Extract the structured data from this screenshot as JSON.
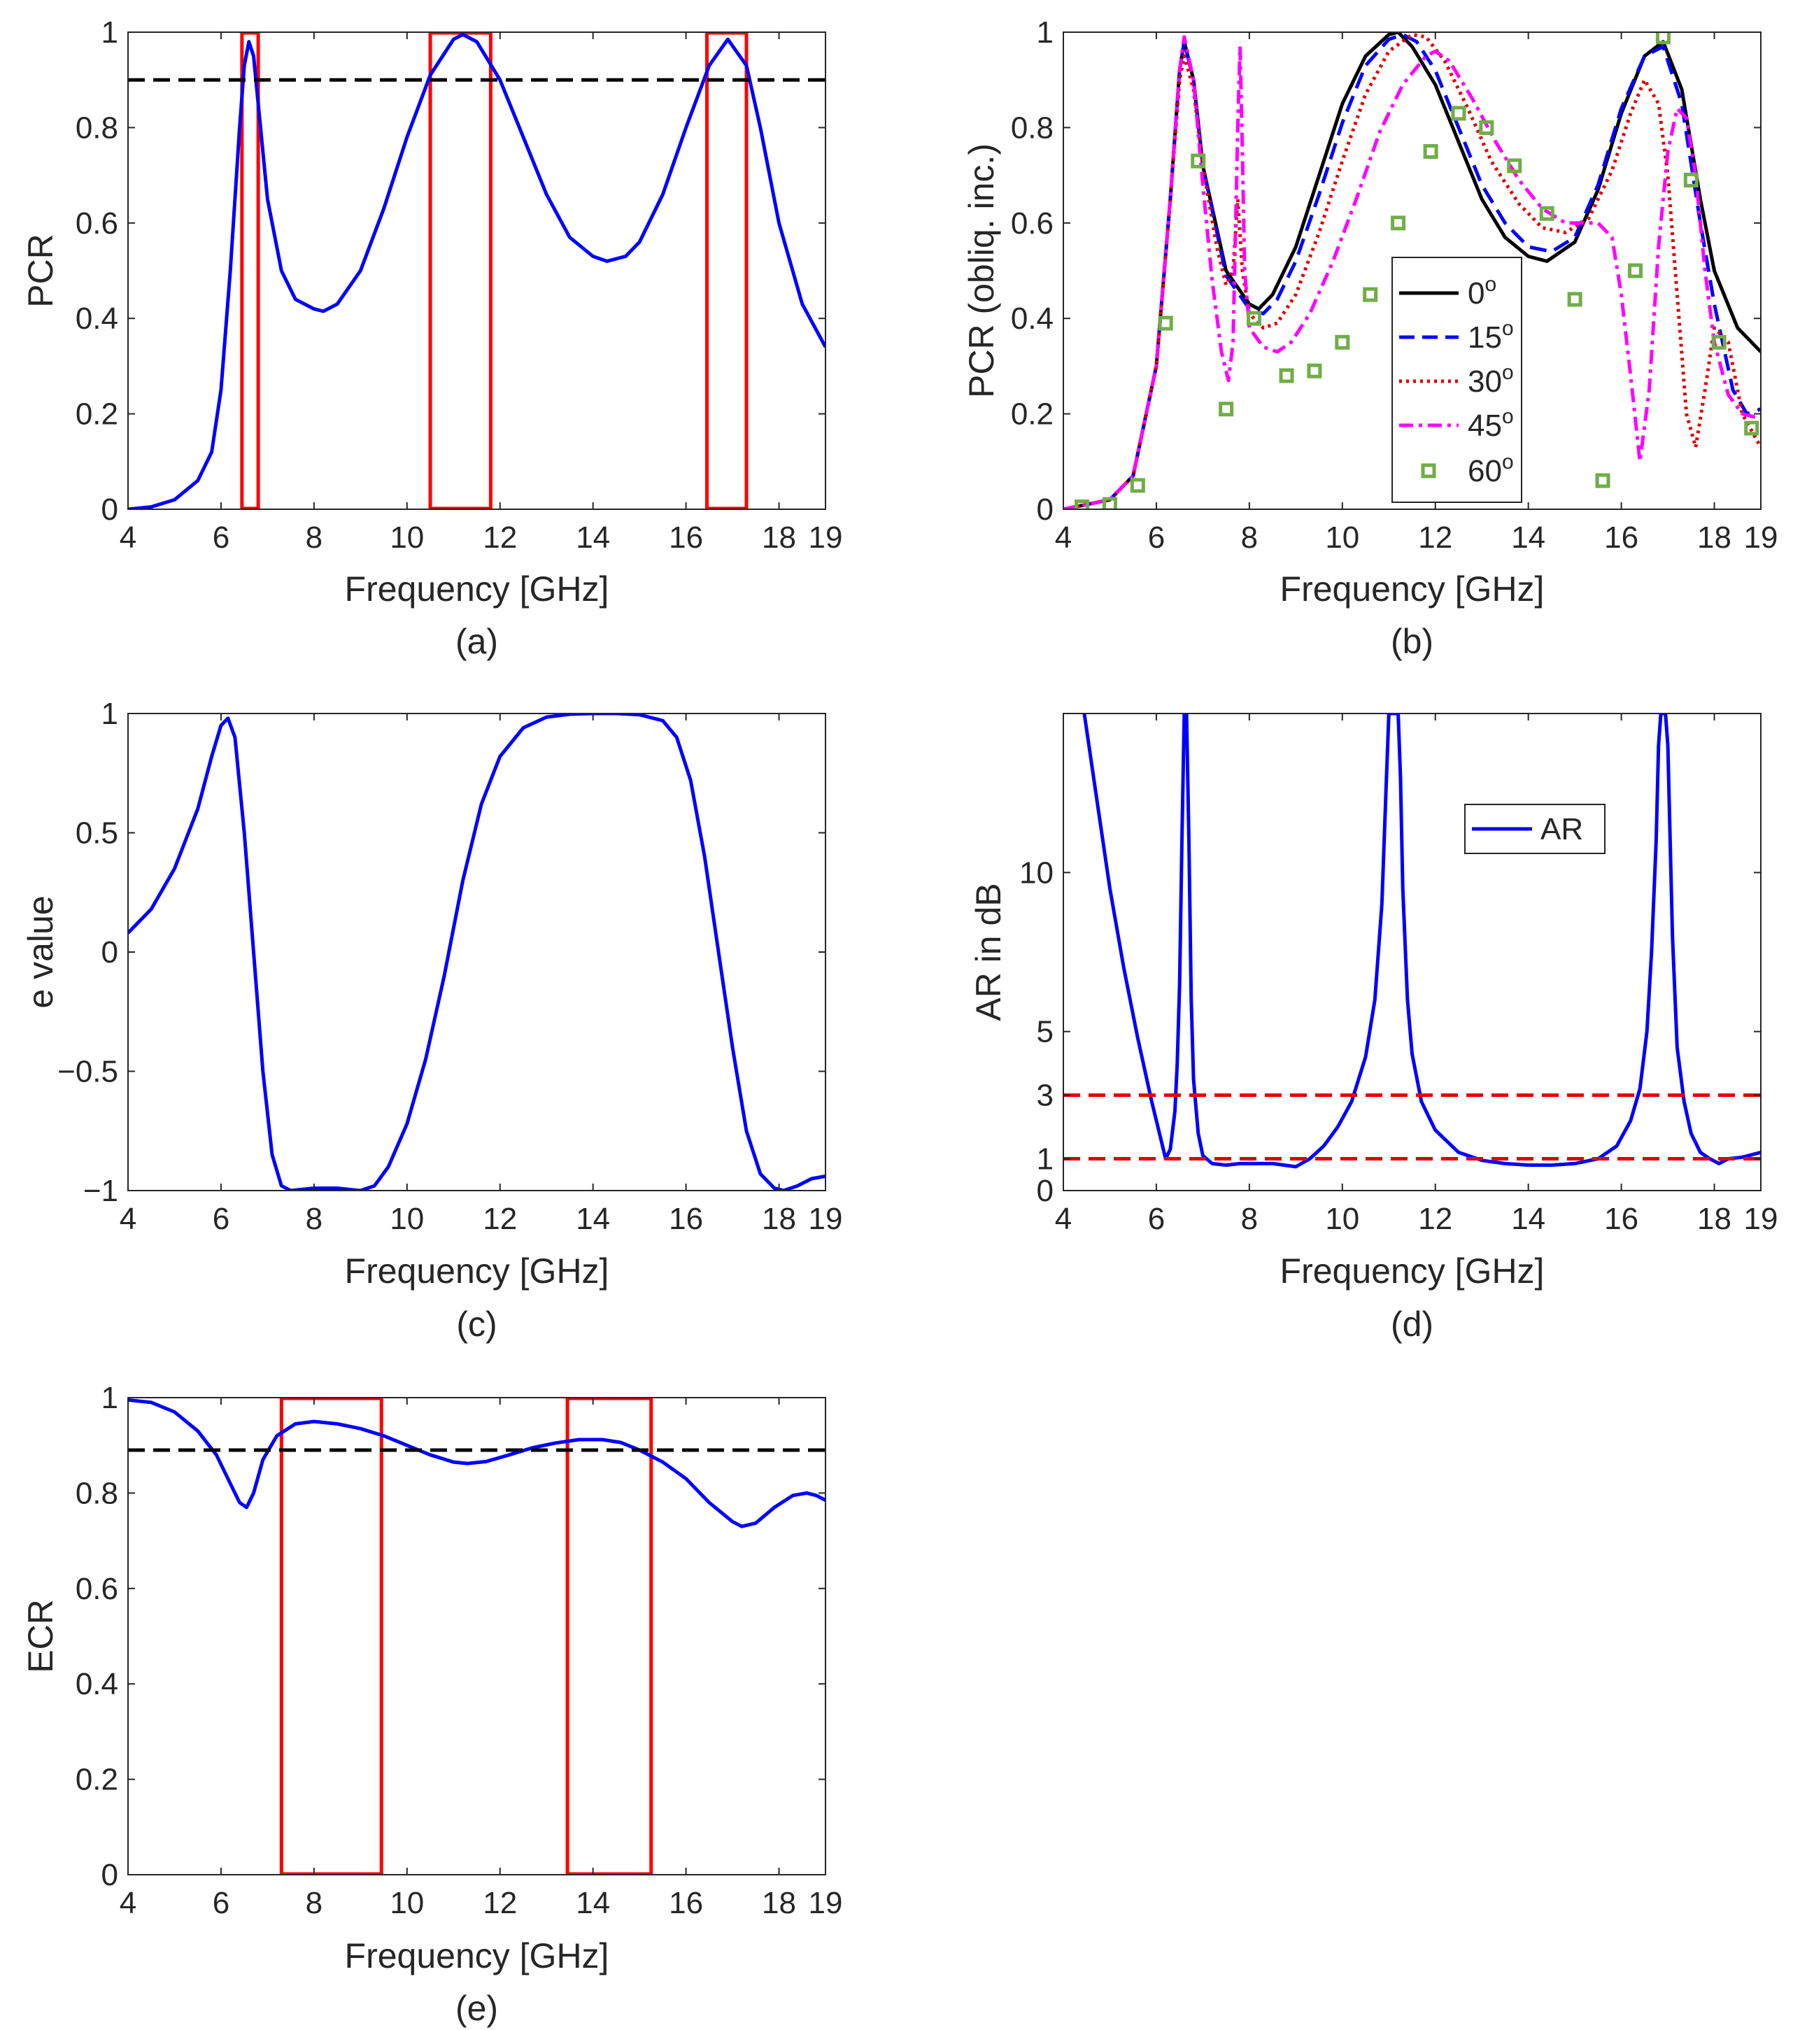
{
  "chart_data": [
    {
      "panel": "(a)",
      "type": "line",
      "xlabel": "Frequency [GHz]",
      "ylabel": "PCR",
      "xlim": [
        4,
        19
      ],
      "ylim": [
        0,
        1
      ],
      "xticks": [
        4,
        6,
        8,
        10,
        12,
        14,
        16,
        18,
        19
      ],
      "yticks": [
        0,
        0.2,
        0.4,
        0.6,
        0.8,
        1
      ],
      "grid": false,
      "series": [
        {
          "color": "#0000ff",
          "style": "solid",
          "x": [
            4,
            4.5,
            5,
            5.5,
            5.8,
            6.0,
            6.2,
            6.4,
            6.5,
            6.6,
            6.7,
            6.8,
            7.0,
            7.3,
            7.6,
            8.0,
            8.2,
            8.5,
            9.0,
            9.5,
            10.0,
            10.5,
            11.0,
            11.2,
            11.5,
            12.0,
            12.5,
            13.0,
            13.5,
            14.0,
            14.3,
            14.7,
            15.0,
            15.5,
            16.0,
            16.5,
            16.9,
            17.3,
            17.6,
            18.0,
            18.5,
            19.0
          ],
          "y": [
            0,
            0.005,
            0.02,
            0.06,
            0.12,
            0.25,
            0.5,
            0.8,
            0.93,
            0.98,
            0.95,
            0.85,
            0.65,
            0.5,
            0.44,
            0.42,
            0.415,
            0.43,
            0.5,
            0.63,
            0.78,
            0.91,
            0.985,
            0.995,
            0.98,
            0.9,
            0.78,
            0.66,
            0.57,
            0.53,
            0.52,
            0.53,
            0.56,
            0.66,
            0.8,
            0.93,
            0.985,
            0.93,
            0.8,
            0.6,
            0.43,
            0.34
          ]
        },
        {
          "color": "#000000",
          "style": "dashed",
          "x": [
            4,
            19
          ],
          "y": [
            0.9,
            0.9
          ]
        }
      ],
      "boxes": [
        [
          6.45,
          6.8
        ],
        [
          10.5,
          11.8
        ],
        [
          16.45,
          17.3
        ]
      ]
    },
    {
      "panel": "(b)",
      "type": "line",
      "xlabel": "Frequency [GHz]",
      "ylabel": "PCR (obliq. inc.)",
      "xlim": [
        4,
        19
      ],
      "ylim": [
        0,
        1
      ],
      "xticks": [
        4,
        6,
        8,
        10,
        12,
        14,
        16,
        18,
        19
      ],
      "yticks": [
        0,
        0.2,
        0.4,
        0.6,
        0.8,
        1
      ],
      "grid": false,
      "legend_position": "center",
      "series": [
        {
          "name": "0",
          "color": "#000000",
          "style": "solid",
          "x": [
            4,
            5,
            5.5,
            6.0,
            6.3,
            6.5,
            6.6,
            6.8,
            7.0,
            7.5,
            8.0,
            8.2,
            8.5,
            9.0,
            9.5,
            10.0,
            10.5,
            11.0,
            11.2,
            11.5,
            12.0,
            12.5,
            13.0,
            13.5,
            14.0,
            14.4,
            15.0,
            15.5,
            16.0,
            16.5,
            16.9,
            17.3,
            17.7,
            18.0,
            18.5,
            19.0
          ],
          "y": [
            0,
            0.02,
            0.07,
            0.3,
            0.65,
            0.92,
            0.98,
            0.9,
            0.72,
            0.5,
            0.43,
            0.42,
            0.45,
            0.55,
            0.7,
            0.85,
            0.95,
            0.995,
            1.0,
            0.97,
            0.89,
            0.77,
            0.65,
            0.57,
            0.53,
            0.52,
            0.56,
            0.67,
            0.83,
            0.95,
            0.98,
            0.88,
            0.65,
            0.5,
            0.38,
            0.33
          ]
        },
        {
          "name": "15",
          "color": "#0000ff",
          "style": "dashed",
          "x": [
            4,
            5,
            5.5,
            6.0,
            6.3,
            6.5,
            6.6,
            6.8,
            7.0,
            7.5,
            8.0,
            8.3,
            8.6,
            9.0,
            9.5,
            10.0,
            10.5,
            11.0,
            11.3,
            11.6,
            12.0,
            12.5,
            13.0,
            13.5,
            14.0,
            14.5,
            15.0,
            15.5,
            16.0,
            16.5,
            16.9,
            17.3,
            17.7,
            18.0,
            18.4,
            18.7,
            19.0
          ],
          "y": [
            0,
            0.02,
            0.07,
            0.3,
            0.65,
            0.92,
            0.98,
            0.9,
            0.72,
            0.49,
            0.42,
            0.41,
            0.44,
            0.52,
            0.66,
            0.81,
            0.93,
            0.985,
            0.995,
            0.98,
            0.92,
            0.8,
            0.68,
            0.6,
            0.55,
            0.54,
            0.57,
            0.68,
            0.84,
            0.95,
            0.97,
            0.85,
            0.6,
            0.43,
            0.25,
            0.2,
            0.21
          ]
        },
        {
          "name": "30",
          "color": "#e00000",
          "style": "dotted",
          "x": [
            4,
            5,
            5.5,
            6.0,
            6.3,
            6.5,
            6.6,
            6.8,
            7.0,
            7.3,
            7.5,
            7.65,
            7.75,
            7.85,
            8.0,
            8.3,
            8.6,
            9.0,
            9.5,
            10.0,
            10.5,
            11.0,
            11.5,
            11.8,
            12.2,
            12.7,
            13.2,
            13.8,
            14.3,
            14.8,
            15.3,
            15.8,
            16.2,
            16.5,
            16.8,
            17.0,
            17.2,
            17.4,
            17.6,
            17.8,
            18.0,
            18.3,
            18.6,
            19.0
          ],
          "y": [
            0,
            0.02,
            0.07,
            0.3,
            0.65,
            0.9,
            0.95,
            0.88,
            0.72,
            0.55,
            0.47,
            0.5,
            0.65,
            0.5,
            0.41,
            0.38,
            0.39,
            0.45,
            0.58,
            0.73,
            0.87,
            0.96,
            0.995,
            0.99,
            0.94,
            0.84,
            0.73,
            0.64,
            0.59,
            0.58,
            0.61,
            0.71,
            0.83,
            0.9,
            0.85,
            0.7,
            0.45,
            0.2,
            0.13,
            0.25,
            0.38,
            0.35,
            0.2,
            0.13
          ]
        },
        {
          "name": "45",
          "color": "#ff00ff",
          "style": "dashdot",
          "x": [
            4,
            5,
            5.5,
            6.0,
            6.3,
            6.5,
            6.6,
            6.8,
            7.0,
            7.2,
            7.4,
            7.55,
            7.65,
            7.75,
            7.8,
            7.85,
            7.9,
            8.0,
            8.3,
            8.6,
            8.9,
            9.3,
            9.8,
            10.3,
            10.8,
            11.3,
            11.8,
            12.0,
            12.3,
            12.8,
            13.3,
            13.8,
            14.3,
            14.8,
            15.2,
            15.5,
            15.8,
            16.0,
            16.2,
            16.4,
            16.6,
            16.8,
            17.0,
            17.2,
            17.4,
            17.6,
            17.8,
            18.0,
            18.3,
            18.6,
            19.0
          ],
          "y": [
            0,
            0.02,
            0.07,
            0.3,
            0.65,
            0.92,
            0.99,
            0.9,
            0.68,
            0.48,
            0.33,
            0.27,
            0.35,
            0.8,
            0.97,
            0.75,
            0.5,
            0.38,
            0.34,
            0.33,
            0.35,
            0.41,
            0.52,
            0.65,
            0.79,
            0.89,
            0.95,
            0.96,
            0.94,
            0.86,
            0.77,
            0.69,
            0.63,
            0.6,
            0.6,
            0.6,
            0.57,
            0.45,
            0.28,
            0.1,
            0.25,
            0.55,
            0.75,
            0.84,
            0.82,
            0.7,
            0.5,
            0.35,
            0.24,
            0.2,
            0.19
          ]
        },
        {
          "name": "60",
          "color": "#70ad47",
          "style": "markers",
          "x": [
            4.4,
            5.0,
            5.6,
            6.2,
            6.9,
            7.5,
            8.1,
            8.8,
            9.4,
            10.0,
            10.6,
            11.2,
            11.9,
            12.5,
            13.1,
            13.7,
            14.4,
            15.0,
            15.6,
            16.3,
            16.9,
            17.5,
            18.1,
            18.8
          ],
          "y": [
            0.005,
            0.01,
            0.05,
            0.39,
            0.73,
            0.21,
            0.4,
            0.28,
            0.29,
            0.35,
            0.45,
            0.6,
            0.75,
            0.83,
            0.8,
            0.72,
            0.62,
            0.44,
            0.06,
            0.5,
            0.99,
            0.69,
            0.35,
            0.17
          ]
        }
      ],
      "legend_sup": "o"
    },
    {
      "panel": "(c)",
      "type": "line",
      "xlabel": "Frequency [GHz]",
      "ylabel": "e value",
      "xlim": [
        4,
        19
      ],
      "ylim": [
        -1,
        1
      ],
      "xticks": [
        4,
        6,
        8,
        10,
        12,
        14,
        16,
        18,
        19
      ],
      "yticks": [
        -1,
        -0.5,
        0,
        0.5,
        1
      ],
      "ytick_labels": [
        "−1",
        "−0.5",
        "0",
        "0.5",
        "1"
      ],
      "grid": false,
      "series": [
        {
          "color": "#0000ff",
          "style": "solid",
          "x": [
            4,
            4.5,
            5.0,
            5.5,
            5.8,
            6.0,
            6.15,
            6.3,
            6.5,
            6.7,
            6.9,
            7.1,
            7.3,
            7.5,
            8.0,
            8.5,
            9.0,
            9.3,
            9.6,
            10.0,
            10.4,
            10.8,
            11.2,
            11.6,
            12.0,
            12.5,
            13.0,
            13.5,
            14.0,
            14.5,
            15.0,
            15.5,
            15.8,
            16.1,
            16.4,
            16.7,
            17.0,
            17.3,
            17.6,
            17.9,
            18.1,
            18.4,
            18.7,
            19.0
          ],
          "y": [
            0.08,
            0.18,
            0.35,
            0.6,
            0.82,
            0.95,
            0.98,
            0.9,
            0.5,
            0.0,
            -0.5,
            -0.85,
            -0.98,
            -1.0,
            -0.99,
            -0.99,
            -1.0,
            -0.98,
            -0.9,
            -0.72,
            -0.45,
            -0.1,
            0.3,
            0.62,
            0.82,
            0.94,
            0.985,
            0.997,
            1.0,
            1.0,
            0.995,
            0.97,
            0.9,
            0.72,
            0.4,
            0.0,
            -0.4,
            -0.75,
            -0.93,
            -0.99,
            -1.0,
            -0.98,
            -0.95,
            -0.94
          ]
        }
      ]
    },
    {
      "panel": "(d)",
      "type": "line",
      "xlabel": "Frequency [GHz]",
      "ylabel": "AR in dB",
      "xlim": [
        4,
        19
      ],
      "ylim": [
        0,
        15
      ],
      "xticks": [
        4,
        6,
        8,
        10,
        12,
        14,
        16,
        18,
        19
      ],
      "yticks": [
        0,
        1,
        3,
        5,
        10
      ],
      "grid": false,
      "legend_position": "top-center",
      "series": [
        {
          "name": "AR",
          "color": "#0000ff",
          "style": "solid",
          "x": [
            4.45,
            4.7,
            5.0,
            5.3,
            5.6,
            5.9,
            6.1,
            6.2,
            6.3,
            6.4,
            6.45,
            6.5,
            6.55,
            6.6,
            6.65,
            6.7,
            6.75,
            6.8,
            6.9,
            7.0,
            7.2,
            7.5,
            7.8,
            8.0,
            8.5,
            9.0,
            9.3,
            9.6,
            9.9,
            10.2,
            10.5,
            10.7,
            10.85,
            10.95,
            11.0,
            11.05,
            11.1,
            11.2,
            11.25,
            11.3,
            11.4,
            11.5,
            11.7,
            12.0,
            12.5,
            13.0,
            13.5,
            14.0,
            14.5,
            15.0,
            15.5,
            15.9,
            16.2,
            16.4,
            16.55,
            16.65,
            16.75,
            16.8,
            16.85,
            16.9,
            16.95,
            17.0,
            17.05,
            17.1,
            17.2,
            17.35,
            17.5,
            17.7,
            17.9,
            18.1,
            18.3,
            18.6,
            19.0
          ],
          "y": [
            15,
            12.5,
            9.5,
            7.0,
            4.8,
            2.8,
            1.6,
            1.0,
            1.3,
            2.5,
            4.0,
            6.5,
            11,
            15,
            15,
            11,
            6.0,
            3.5,
            1.8,
            1.1,
            0.85,
            0.8,
            0.85,
            0.85,
            0.85,
            0.75,
            1.0,
            1.4,
            2.0,
            2.8,
            4.2,
            6.0,
            9.0,
            13,
            15,
            15,
            15,
            15,
            13,
            9.5,
            6.0,
            4.3,
            2.8,
            1.9,
            1.2,
            0.95,
            0.85,
            0.8,
            0.8,
            0.85,
            1.0,
            1.4,
            2.2,
            3.2,
            5.0,
            7.5,
            11,
            14,
            15,
            15,
            15,
            14,
            11,
            8.0,
            4.5,
            2.8,
            1.8,
            1.2,
            1.0,
            0.85,
            1.0,
            1.05,
            1.2
          ]
        },
        {
          "color": "#e00000",
          "style": "dashed",
          "x": [
            4,
            19
          ],
          "y": [
            3,
            3
          ]
        },
        {
          "color": "#e00000",
          "style": "dashed",
          "x": [
            4,
            19
          ],
          "y": [
            1,
            1
          ]
        }
      ]
    },
    {
      "panel": "(e)",
      "type": "line",
      "xlabel": "Frequency [GHz]",
      "ylabel": "ECR",
      "xlim": [
        4,
        19
      ],
      "ylim": [
        0,
        1
      ],
      "xticks": [
        4,
        6,
        8,
        10,
        12,
        14,
        16,
        18,
        19
      ],
      "yticks": [
        0,
        0.2,
        0.4,
        0.6,
        0.8,
        1
      ],
      "grid": false,
      "series": [
        {
          "color": "#0000ff",
          "style": "solid",
          "x": [
            4,
            4.5,
            5.0,
            5.5,
            5.9,
            6.2,
            6.4,
            6.55,
            6.7,
            6.9,
            7.2,
            7.6,
            8.0,
            8.5,
            9.0,
            9.5,
            10.0,
            10.5,
            11.0,
            11.3,
            11.7,
            12.2,
            12.7,
            13.2,
            13.7,
            14.2,
            14.6,
            15.0,
            15.5,
            16.0,
            16.5,
            17.0,
            17.2,
            17.5,
            17.9,
            18.3,
            18.6,
            18.8,
            19.0
          ],
          "y": [
            0.995,
            0.99,
            0.97,
            0.93,
            0.88,
            0.82,
            0.78,
            0.77,
            0.8,
            0.87,
            0.92,
            0.945,
            0.95,
            0.945,
            0.935,
            0.92,
            0.9,
            0.88,
            0.865,
            0.862,
            0.866,
            0.88,
            0.895,
            0.905,
            0.912,
            0.912,
            0.906,
            0.89,
            0.865,
            0.83,
            0.78,
            0.74,
            0.73,
            0.737,
            0.77,
            0.795,
            0.8,
            0.795,
            0.785
          ]
        },
        {
          "color": "#000000",
          "style": "dashed",
          "x": [
            4,
            19
          ],
          "y": [
            0.89,
            0.89
          ]
        }
      ],
      "boxes": [
        [
          7.3,
          9.45
        ],
        [
          13.45,
          15.25
        ]
      ]
    }
  ]
}
